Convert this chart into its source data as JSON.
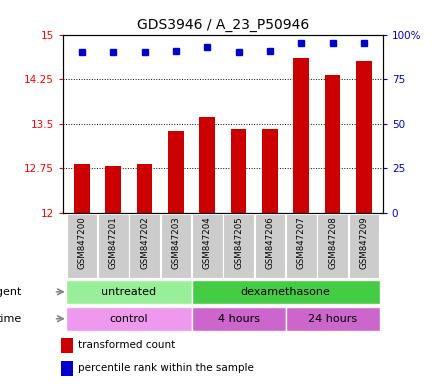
{
  "title": "GDS3946 / A_23_P50946",
  "samples": [
    "GSM847200",
    "GSM847201",
    "GSM847202",
    "GSM847203",
    "GSM847204",
    "GSM847205",
    "GSM847206",
    "GSM847207",
    "GSM847208",
    "GSM847209"
  ],
  "bar_values": [
    12.82,
    12.79,
    12.82,
    13.38,
    13.61,
    13.42,
    13.42,
    14.6,
    14.32,
    14.55
  ],
  "percentile_values": [
    90,
    90,
    90,
    91,
    93,
    90,
    91,
    95,
    95,
    95
  ],
  "bar_color": "#cc0000",
  "dot_color": "#0000cc",
  "ylim_left": [
    12,
    15
  ],
  "ylim_right": [
    0,
    100
  ],
  "yticks_left": [
    12,
    12.75,
    13.5,
    14.25,
    15
  ],
  "yticks_left_labels": [
    "12",
    "12.75",
    "13.5",
    "14.25",
    "15"
  ],
  "yticks_right": [
    0,
    25,
    50,
    75,
    100
  ],
  "yticks_right_labels": [
    "0",
    "25",
    "50",
    "75",
    "100%"
  ],
  "gridlines": [
    12.75,
    13.5,
    14.25
  ],
  "agent_labels": [
    {
      "text": "untreated",
      "start": 0,
      "end": 4,
      "color": "#99ee99"
    },
    {
      "text": "dexamethasone",
      "start": 4,
      "end": 10,
      "color": "#44cc44"
    }
  ],
  "time_labels": [
    {
      "text": "control",
      "start": 0,
      "end": 4,
      "color": "#ee99ee"
    },
    {
      "text": "4 hours",
      "start": 4,
      "end": 7,
      "color": "#cc66cc"
    },
    {
      "text": "24 hours",
      "start": 7,
      "end": 10,
      "color": "#cc66cc"
    }
  ],
  "legend_items": [
    {
      "color": "#cc0000",
      "label": "transformed count"
    },
    {
      "color": "#0000cc",
      "label": "percentile rank within the sample"
    }
  ],
  "agent_row_label": "agent",
  "time_row_label": "time",
  "background_color": "#ffffff",
  "tick_bg_color": "#cccccc",
  "bar_width": 0.5,
  "xlim": [
    -0.6,
    9.6
  ]
}
